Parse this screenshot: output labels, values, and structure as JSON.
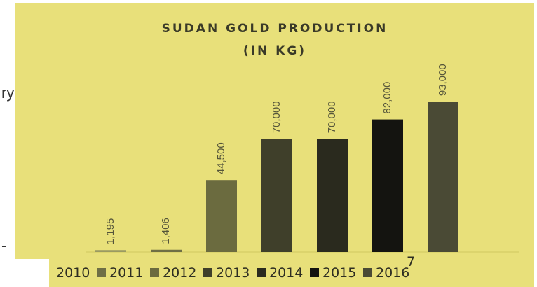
{
  "side_texts": [
    "ry",
    "-"
  ],
  "chart_data": {
    "type": "bar",
    "title_lines": [
      "SUDAN GOLD PRODUCTION",
      "(IN KG)"
    ],
    "categories": [
      "2010",
      "2011",
      "2012",
      "2013",
      "2014",
      "2015",
      "2016"
    ],
    "values": [
      1195,
      1406,
      44500,
      70000,
      70000,
      82000,
      93000
    ],
    "data_labels": [
      "1,195",
      "1,406",
      "44,500",
      "70,000",
      "70,000",
      "82,000",
      "93,000"
    ],
    "colors": [
      "#9a9a62",
      "#6f6f45",
      "#6b6b3f",
      "#3f3f2a",
      "#2a2a1e",
      "#141410",
      "#4a4a35"
    ],
    "ylim": [
      0,
      100000
    ],
    "legend_position": "bottom",
    "axis_mark": "7",
    "background": "#e8e07a",
    "grid": false
  }
}
